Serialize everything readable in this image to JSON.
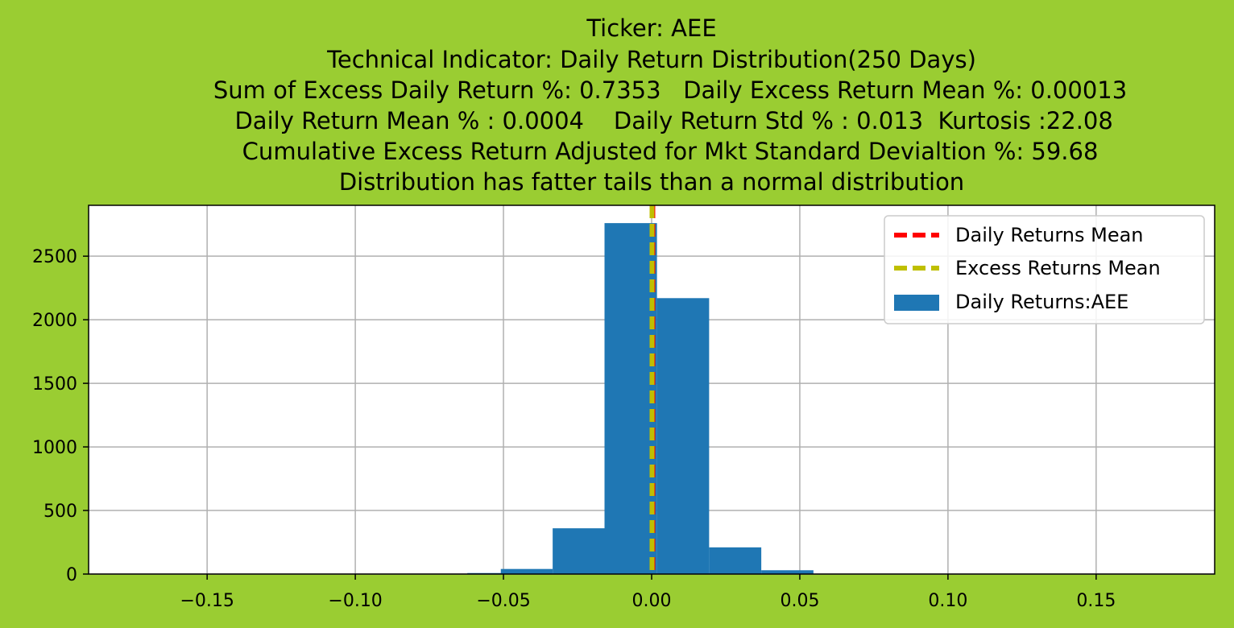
{
  "chart_data": {
    "type": "bar",
    "title_lines": [
      "Ticker: AEE",
      "Technical Indicator: Daily Return Distribution(250 Days)",
      "     Sum of Excess Daily Return %: 0.7353   Daily Excess Return Mean %: 0.00013",
      "      Daily Return Mean % : 0.0004    Daily Return Std % : 0.013  Kurtosis :22.08",
      "     Cumulative Excess Return Adjusted for Mkt Standard Devialtion %: 59.68",
      "Distribution has fatter tails than a normal distribution"
    ],
    "xlim": [
      -0.19,
      0.19
    ],
    "ylim": [
      0,
      2900
    ],
    "x_ticks": [
      -0.15,
      -0.1,
      -0.05,
      0.0,
      0.05,
      0.1,
      0.15
    ],
    "x_tick_labels": [
      "−0.15",
      "−0.10",
      "−0.05",
      "0.00",
      "0.05",
      "0.10",
      "0.15"
    ],
    "y_ticks": [
      0,
      500,
      1000,
      1500,
      2000,
      2500
    ],
    "y_tick_labels": [
      "0",
      "500",
      "1000",
      "1500",
      "2000",
      "2500"
    ],
    "grid": true,
    "legend_position": "top-right",
    "histogram": {
      "name": "Daily Returns:AEE",
      "color": "#1f77b4",
      "bin_edges": [
        -0.1707,
        -0.1526,
        -0.1345,
        -0.1164,
        -0.0984,
        -0.0803,
        -0.0622,
        -0.0509,
        -0.0334,
        -0.0159,
        0.0018,
        0.0194,
        0.037,
        0.0546,
        0.0722,
        0.0898,
        0.1074,
        0.125,
        0.1426,
        0.1602,
        0.1778
      ],
      "counts": [
        1,
        0,
        0,
        0,
        0,
        1,
        8,
        40,
        360,
        2760,
        2170,
        210,
        30,
        3,
        1,
        0,
        1,
        0,
        0,
        1
      ]
    },
    "vlines": [
      {
        "name": "Daily Returns Mean",
        "x": 0.0004,
        "color": "#ff0000",
        "style": "dashed"
      },
      {
        "name": "Excess Returns Mean",
        "x": 0.00013,
        "color": "#bfbf00",
        "style": "dashed"
      }
    ]
  }
}
